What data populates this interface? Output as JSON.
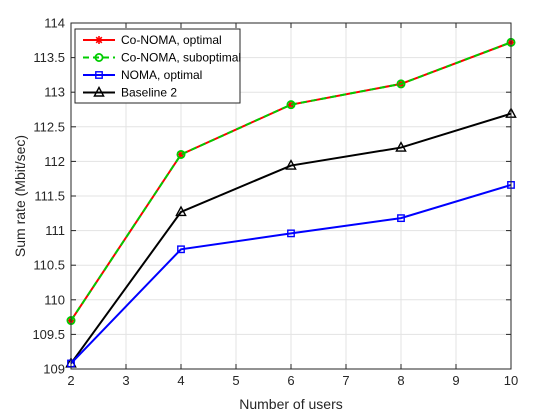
{
  "chart_data": {
    "type": "line",
    "title": "",
    "xlabel": "Number of users",
    "ylabel": "Sum rate (Mbit/sec)",
    "xlim": [
      2,
      10
    ],
    "ylim": [
      109,
      114
    ],
    "xticks": [
      2,
      3,
      4,
      5,
      6,
      7,
      8,
      9,
      10
    ],
    "yticks": [
      109,
      109.5,
      110,
      110.5,
      111,
      111.5,
      112,
      112.5,
      113,
      113.5,
      114
    ],
    "ytick_labels": [
      "109",
      "109.5",
      "110",
      "110.5",
      "111",
      "111.5",
      "112",
      "112.5",
      "113",
      "113.5",
      "114"
    ],
    "grid": true,
    "legend_position": "top-left",
    "x": [
      2,
      4,
      6,
      8,
      10
    ],
    "series": [
      {
        "name": "Co-NOMA, optimal",
        "values": [
          109.7,
          112.1,
          112.82,
          113.12,
          113.72
        ],
        "color": "#ff0000",
        "marker": "asterisk",
        "dash": "solid"
      },
      {
        "name": "Co-NOMA, suboptimal",
        "values": [
          109.7,
          112.1,
          112.82,
          113.12,
          113.72
        ],
        "color": "#00cc00",
        "marker": "circle",
        "dash": "dashed"
      },
      {
        "name": "NOMA, optimal",
        "values": [
          109.08,
          110.73,
          110.96,
          111.18,
          111.66
        ],
        "color": "#0000ff",
        "marker": "square",
        "dash": "solid"
      },
      {
        "name": "Baseline 2",
        "values": [
          109.08,
          111.27,
          111.94,
          112.2,
          112.69
        ],
        "color": "#000000",
        "marker": "triangle",
        "dash": "solid"
      }
    ]
  }
}
